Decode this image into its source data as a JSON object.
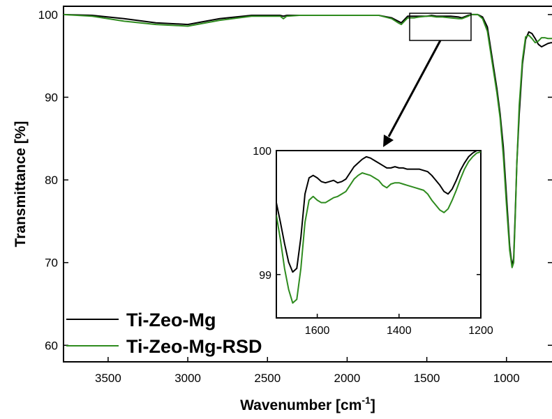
{
  "chart_data": {
    "type": "line",
    "xlabel": "Wavenumber [cm",
    "xlabel_sup": "-1",
    "xlabel_close": "]",
    "ylabel": "Transmittance [%]",
    "xlim": [
      3780,
      710
    ],
    "ylim": [
      58,
      101
    ],
    "x_ticks": [
      3500,
      3000,
      2500,
      2000,
      1500,
      1000
    ],
    "y_ticks": [
      60,
      70,
      80,
      90,
      100
    ],
    "legend_placement": "bottom-left",
    "colors": {
      "Ti-Zeo-Mg": "#000000",
      "Ti-Zeo-Mg-RSD": "#2e8b1e"
    },
    "series": [
      {
        "name": "Ti-Zeo-Mg",
        "x": [
          3780,
          3600,
          3400,
          3200,
          3000,
          2800,
          2600,
          2420,
          2400,
          2380,
          2300,
          2100,
          1900,
          1800,
          1720,
          1680,
          1660,
          1620,
          1580,
          1550,
          1500,
          1470,
          1440,
          1400,
          1350,
          1300,
          1280,
          1240,
          1220,
          1200,
          1180,
          1150,
          1120,
          1100,
          1080,
          1060,
          1040,
          1020,
          1000,
          980,
          965,
          955,
          945,
          935,
          920,
          900,
          880,
          860,
          840,
          820,
          800,
          780,
          760,
          740,
          720,
          710
        ],
        "y": [
          100.0,
          99.9,
          99.5,
          99.0,
          98.8,
          99.5,
          99.9,
          99.9,
          99.8,
          99.9,
          99.9,
          99.9,
          99.9,
          99.9,
          99.6,
          99.2,
          99.0,
          99.8,
          99.8,
          99.8,
          99.8,
          99.9,
          99.8,
          99.8,
          99.8,
          99.7,
          99.6,
          99.9,
          100.0,
          100.0,
          100.0,
          99.7,
          98.5,
          96.0,
          93.5,
          91.0,
          88.0,
          84.0,
          78.0,
          72.0,
          69.6,
          70.5,
          76.0,
          82.0,
          88.0,
          94.0,
          97.0,
          97.9,
          97.7,
          97.1,
          96.4,
          96.1,
          96.3,
          96.5,
          96.6,
          96.6
        ]
      },
      {
        "name": "Ti-Zeo-Mg-RSD",
        "x": [
          3780,
          3600,
          3400,
          3200,
          3000,
          2800,
          2600,
          2420,
          2400,
          2380,
          2300,
          2100,
          1900,
          1800,
          1720,
          1680,
          1660,
          1620,
          1580,
          1550,
          1500,
          1470,
          1440,
          1400,
          1350,
          1300,
          1280,
          1240,
          1220,
          1200,
          1180,
          1150,
          1120,
          1100,
          1080,
          1060,
          1040,
          1020,
          1000,
          980,
          965,
          955,
          945,
          935,
          920,
          900,
          880,
          860,
          840,
          820,
          800,
          780,
          760,
          740,
          720,
          710
        ],
        "y": [
          100.0,
          99.8,
          99.2,
          98.8,
          98.6,
          99.3,
          99.8,
          99.8,
          99.5,
          99.8,
          99.9,
          99.9,
          99.9,
          99.9,
          99.5,
          99.0,
          98.8,
          99.6,
          99.6,
          99.7,
          99.8,
          99.8,
          99.7,
          99.7,
          99.6,
          99.5,
          99.5,
          99.8,
          100.0,
          100.0,
          100.0,
          99.5,
          98.0,
          95.5,
          93.0,
          90.5,
          87.5,
          83.0,
          77.0,
          71.5,
          69.4,
          70.0,
          75.5,
          82.0,
          89.0,
          94.5,
          97.3,
          97.5,
          97.1,
          96.6,
          96.8,
          97.2,
          97.2,
          97.1,
          97.1,
          97.1
        ]
      }
    ],
    "inset": {
      "xlim": [
        1700,
        1200
      ],
      "ylim": [
        98.65,
        100.0
      ],
      "x_ticks": [
        1600,
        1400,
        1200
      ],
      "y_ticks": [
        99,
        100
      ],
      "series": [
        {
          "name": "Ti-Zeo-Mg",
          "x": [
            1700,
            1690,
            1680,
            1670,
            1660,
            1650,
            1640,
            1630,
            1620,
            1610,
            1600,
            1590,
            1580,
            1570,
            1560,
            1550,
            1540,
            1530,
            1520,
            1510,
            1500,
            1490,
            1480,
            1470,
            1460,
            1450,
            1440,
            1430,
            1420,
            1410,
            1400,
            1390,
            1380,
            1370,
            1360,
            1350,
            1340,
            1330,
            1320,
            1310,
            1300,
            1290,
            1280,
            1270,
            1260,
            1250,
            1240,
            1230,
            1220,
            1210,
            1200
          ],
          "y": [
            99.58,
            99.42,
            99.25,
            99.1,
            99.02,
            99.05,
            99.3,
            99.65,
            99.78,
            99.8,
            99.78,
            99.75,
            99.74,
            99.75,
            99.76,
            99.74,
            99.75,
            99.77,
            99.82,
            99.87,
            99.9,
            99.93,
            99.95,
            99.94,
            99.92,
            99.9,
            99.88,
            99.86,
            99.86,
            99.87,
            99.86,
            99.86,
            99.85,
            99.85,
            99.85,
            99.85,
            99.84,
            99.83,
            99.8,
            99.76,
            99.72,
            99.67,
            99.65,
            99.69,
            99.76,
            99.84,
            99.9,
            99.95,
            99.98,
            100.0,
            100.0
          ]
        },
        {
          "name": "Ti-Zeo-Mg-RSD",
          "x": [
            1700,
            1690,
            1680,
            1670,
            1660,
            1650,
            1640,
            1630,
            1620,
            1610,
            1600,
            1590,
            1580,
            1570,
            1560,
            1550,
            1540,
            1530,
            1520,
            1510,
            1500,
            1490,
            1480,
            1470,
            1460,
            1450,
            1440,
            1430,
            1420,
            1410,
            1400,
            1390,
            1380,
            1370,
            1360,
            1350,
            1340,
            1330,
            1320,
            1310,
            1300,
            1290,
            1280,
            1270,
            1260,
            1250,
            1240,
            1230,
            1220,
            1210,
            1200
          ],
          "y": [
            99.48,
            99.28,
            99.05,
            98.88,
            98.77,
            98.8,
            99.05,
            99.42,
            99.6,
            99.63,
            99.6,
            99.58,
            99.58,
            99.6,
            99.62,
            99.63,
            99.65,
            99.67,
            99.72,
            99.77,
            99.8,
            99.82,
            99.81,
            99.8,
            99.78,
            99.76,
            99.72,
            99.7,
            99.73,
            99.74,
            99.74,
            99.73,
            99.72,
            99.71,
            99.7,
            99.69,
            99.68,
            99.65,
            99.6,
            99.56,
            99.52,
            99.5,
            99.53,
            99.6,
            99.68,
            99.77,
            99.85,
            99.91,
            99.95,
            99.98,
            99.99
          ]
        }
      ]
    }
  }
}
